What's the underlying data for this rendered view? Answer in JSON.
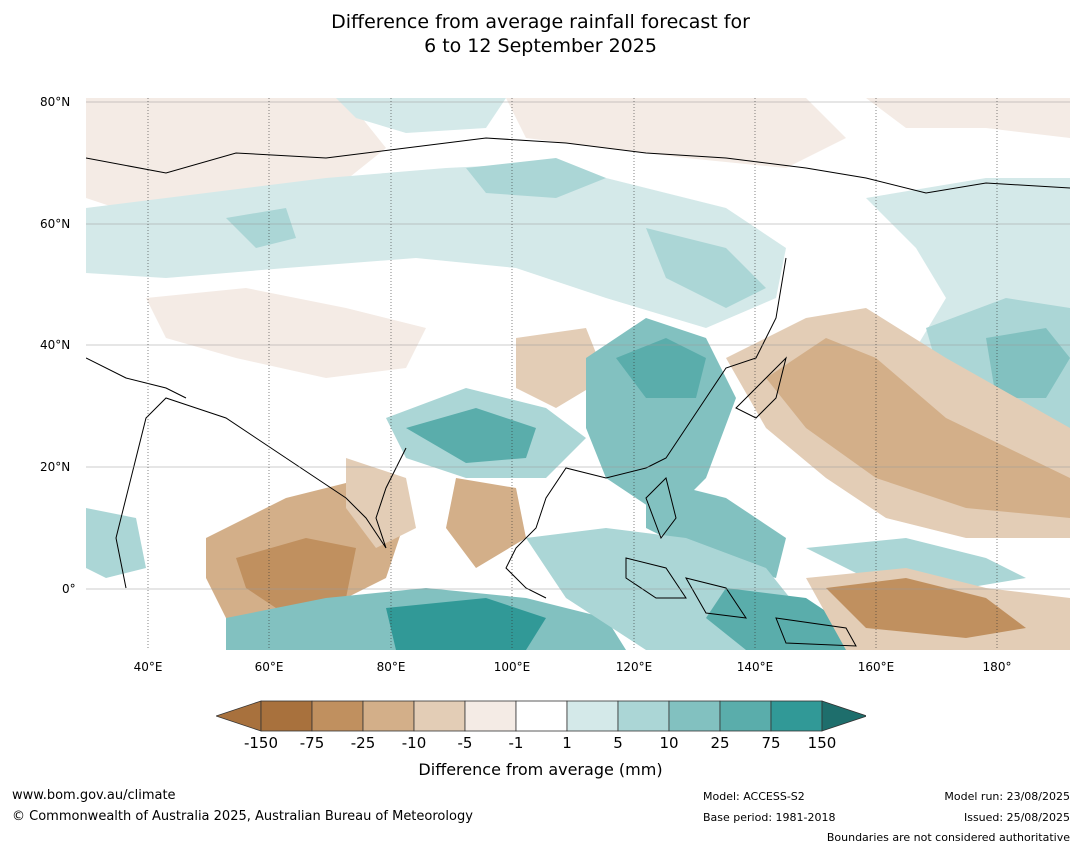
{
  "title": {
    "line1": "Difference from average rainfall forecast for",
    "line2": "6 to 12 September 2025"
  },
  "map": {
    "lat_labels": [
      "80°N",
      "60°N",
      "40°N",
      "20°N",
      "0°"
    ],
    "lon_labels": [
      "40°E",
      "60°E",
      "80°E",
      "100°E",
      "120°E",
      "140°E",
      "160°E",
      "180°"
    ],
    "region": "Asia and western Pacific"
  },
  "colorbar": {
    "ticks": [
      "-150",
      "-75",
      "-25",
      "-10",
      "-5",
      "-1",
      "1",
      "5",
      "10",
      "25",
      "75",
      "150"
    ],
    "colors": [
      "#a8713d",
      "#c0905f",
      "#d3af89",
      "#e3cdb6",
      "#f4ebe5",
      "#ffffff",
      "#d4e9e9",
      "#abd6d6",
      "#82c1c0",
      "#5aadab",
      "#319997",
      "#1e6e6c"
    ],
    "extend_low_color": "#a8713d",
    "extend_high_color": "#1e6e6c",
    "caption": "Difference from average (mm)"
  },
  "footer": {
    "website": "www.bom.gov.au/climate",
    "copyright": "© Commonwealth of Australia 2025, Australian Bureau of Meteorology",
    "model": "Model: ACCESS-S2",
    "base_period": "Base period: 1981-2018",
    "model_run": "Model run: 23/08/2025",
    "issued": "Issued: 25/08/2025",
    "boundaries_note": "Boundaries are not considered authoritative"
  }
}
